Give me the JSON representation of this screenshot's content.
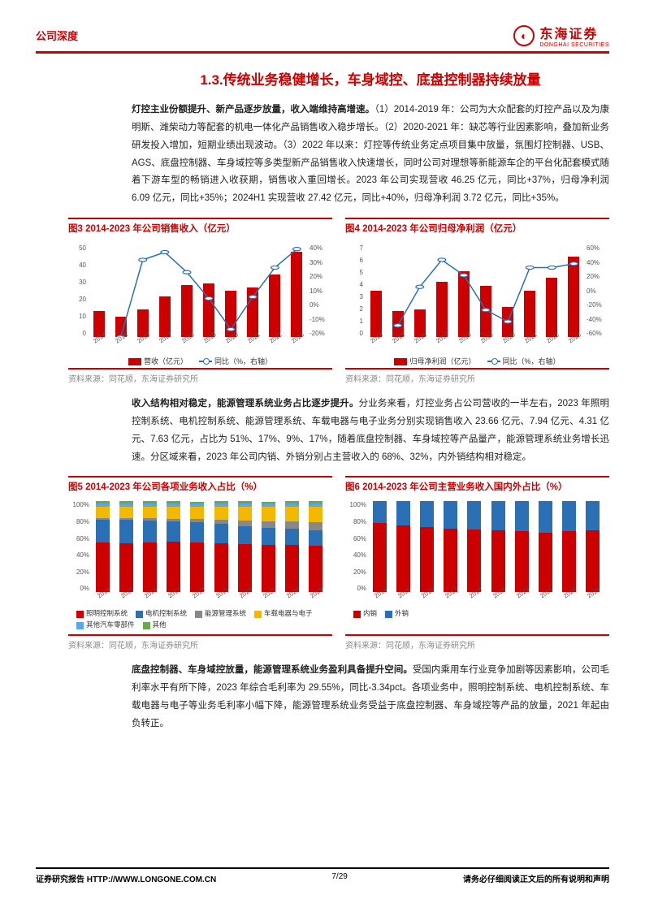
{
  "header": {
    "left": "公司深度",
    "brand_cn": "东海证券",
    "brand_en": "DONGHAI SECURITIES",
    "logo_glyph": "◐"
  },
  "section_title": "1.3.传统业务稳健增长，车身域控、底盘控制器持续放量",
  "p1_lead": "灯控主业份额提升、新产品逐步放量，收入端维持高增速。",
  "p1_rest": "（1）2014-2019 年：公司为大众配套的灯控产品以及为康明斯、潍柴动力等配套的机电一体化产品销售收入稳步增长。（2）2020-2021 年：缺芯等行业因素影响，叠加新业务研发投入增加，短期业绩出现波动。（3）2022 年以来：灯控等传统业务定点项目集中放量，氛围灯控制器、USB、AGS、底盘控制器、车身域控等多类型新产品销售收入快速增长，同时公司对理想等新能源车企的平台化配套模式随着下游车型的畅销进入收获期，销售收入重回增长。2023 年公司实现营收 46.25 亿元，同比+37%，归母净利润 6.09 亿元，同比+35%；2024H1 实现营收 27.42 亿元，同比+40%，归母净利润 3.72 亿元，同比+35%。",
  "p2_lead": "收入结构相对稳定，能源管理系统业务占比逐步提升。",
  "p2_rest": "分业务来看，灯控业务占公司营收的一半左右，2023 年照明控制系统、电机控制系统、能源管理系统、车载电器与电子业务分别实现销售收入 23.66 亿元、7.94 亿元、4.31 亿元、7.63 亿元，占比为 51%、17%、9%、17%，随着底盘控制器、车身域控等产品量产，能源管理系统业务增长迅速。分区域来看，2023 年公司内销、外销分别占主营收入的 68%、32%，内外销结构相对稳定。",
  "p3_lead": "底盘控制器、车身域控放量，能源管理系统业务盈利具备提升空间。",
  "p3_rest": "受国内乘用车行业竞争加剧等因素影响，公司毛利率水平有所下降，2023 年综合毛利率为 29.55%，同比-3.34pct。各项业务中，照明控制系统、电机控制系统、车载电器与电子等业务毛利率小幅下降，能源管理系统业务受益于底盘控制器、车身域控等产品的放量，2021 年起由负转正。",
  "chart3": {
    "title": "图3  2014-2023 年公司销售收入（亿元）",
    "type": "bar+line",
    "categories": [
      "2014",
      "2015",
      "2016",
      "2017",
      "2018",
      "2019",
      "2020",
      "2021",
      "2022",
      "2023"
    ],
    "bars": [
      14,
      11,
      15,
      22,
      28,
      29,
      25,
      27,
      34,
      46
    ],
    "bar_max": 50,
    "line": [
      null,
      -20,
      30,
      35,
      22,
      5,
      -15,
      6,
      25,
      37
    ],
    "line_min": -20,
    "line_max": 40,
    "yl_ticks": [
      "50",
      "40",
      "30",
      "20",
      "10",
      "0"
    ],
    "yr_ticks": [
      "40%",
      "30%",
      "20%",
      "10%",
      "0%",
      "-10%",
      "-20%"
    ],
    "legend": [
      "营收（亿元）",
      "同比（%，右轴）"
    ],
    "bar_color": "#c00",
    "line_color": "#2b6fb5",
    "source": "资料来源：同花顺，东海证券研究所"
  },
  "chart4": {
    "title": "图4  2014-2023 年公司归母净利润（亿元）",
    "type": "bar+line",
    "categories": [
      "2014",
      "2015",
      "2016",
      "2017",
      "2018",
      "2019",
      "2020",
      "2021",
      "2022",
      "2023"
    ],
    "bars": [
      3.5,
      2.0,
      2.1,
      4.2,
      5.0,
      3.9,
      2.3,
      3.5,
      4.5,
      6.1
    ],
    "bar_max": 7,
    "line": [
      null,
      -45,
      5,
      40,
      20,
      -25,
      -40,
      30,
      30,
      35
    ],
    "line_min": -60,
    "line_max": 60,
    "yl_ticks": [
      "7",
      "6",
      "5",
      "4",
      "3",
      "2",
      "1",
      "0"
    ],
    "yr_ticks": [
      "60%",
      "40%",
      "20%",
      "0%",
      "-20%",
      "-40%",
      "-60%"
    ],
    "legend": [
      "归母净利润（亿元）",
      "同比（%，右轴）"
    ],
    "bar_color": "#c00",
    "line_color": "#2b6fb5",
    "source": "资料来源：同花顺，东海证券研究所"
  },
  "chart5": {
    "title": "图5  2014-2023 年公司各项业务收入占比（%）",
    "type": "stacked-bar",
    "categories": [
      "2014",
      "2015",
      "2016",
      "2017",
      "2018",
      "2019",
      "2020",
      "2021",
      "2022",
      "2023"
    ],
    "series_labels": [
      "照明控制系统",
      "电机控制系统",
      "能源管理系统",
      "车载电器与电子",
      "其他汽车零部件",
      "其他"
    ],
    "series_colors": [
      "#c00",
      "#2b6fb5",
      "#888888",
      "#f2b900",
      "#5aa6e6",
      "#6aa84f"
    ],
    "stacks": [
      [
        55,
        25,
        2,
        12,
        4,
        2
      ],
      [
        54,
        26,
        2,
        12,
        4,
        2
      ],
      [
        55,
        24,
        3,
        12,
        4,
        2
      ],
      [
        56,
        22,
        3,
        13,
        4,
        2
      ],
      [
        55,
        22,
        4,
        13,
        4,
        2
      ],
      [
        54,
        21,
        5,
        14,
        4,
        2
      ],
      [
        53,
        20,
        6,
        15,
        4,
        2
      ],
      [
        52,
        19,
        7,
        16,
        4,
        2
      ],
      [
        52,
        18,
        8,
        16,
        4,
        2
      ],
      [
        51,
        17,
        9,
        17,
        4,
        2
      ]
    ],
    "y_ticks": [
      "100%",
      "80%",
      "60%",
      "40%",
      "20%",
      "0%"
    ],
    "source": "资料来源：同花顺，东海证券研究所"
  },
  "chart6": {
    "title": "图6  2014-2023 年公司主营业务收入国内外占比（%）",
    "type": "stacked-bar",
    "categories": [
      "2014",
      "2015",
      "2016",
      "2017",
      "2018",
      "2019",
      "2020",
      "2021",
      "2022",
      "2023"
    ],
    "series_labels": [
      "内销",
      "外销"
    ],
    "series_colors": [
      "#c00",
      "#2b6fb5"
    ],
    "stacks": [
      [
        76,
        24
      ],
      [
        74,
        26
      ],
      [
        72,
        28
      ],
      [
        70,
        30
      ],
      [
        69,
        31
      ],
      [
        68,
        32
      ],
      [
        67,
        33
      ],
      [
        66,
        34
      ],
      [
        67,
        33
      ],
      [
        68,
        32
      ]
    ],
    "y_ticks": [
      "100%",
      "80%",
      "60%",
      "40%",
      "20%",
      "0%"
    ],
    "source": "资料来源：同花顺，东海证券研究所"
  },
  "footer": {
    "left": "证券研究报告    HTTP://WWW.LONGONE.COM.CN",
    "mid": "7/29",
    "right": "请务必仔细阅读正文后的所有说明和声明"
  }
}
